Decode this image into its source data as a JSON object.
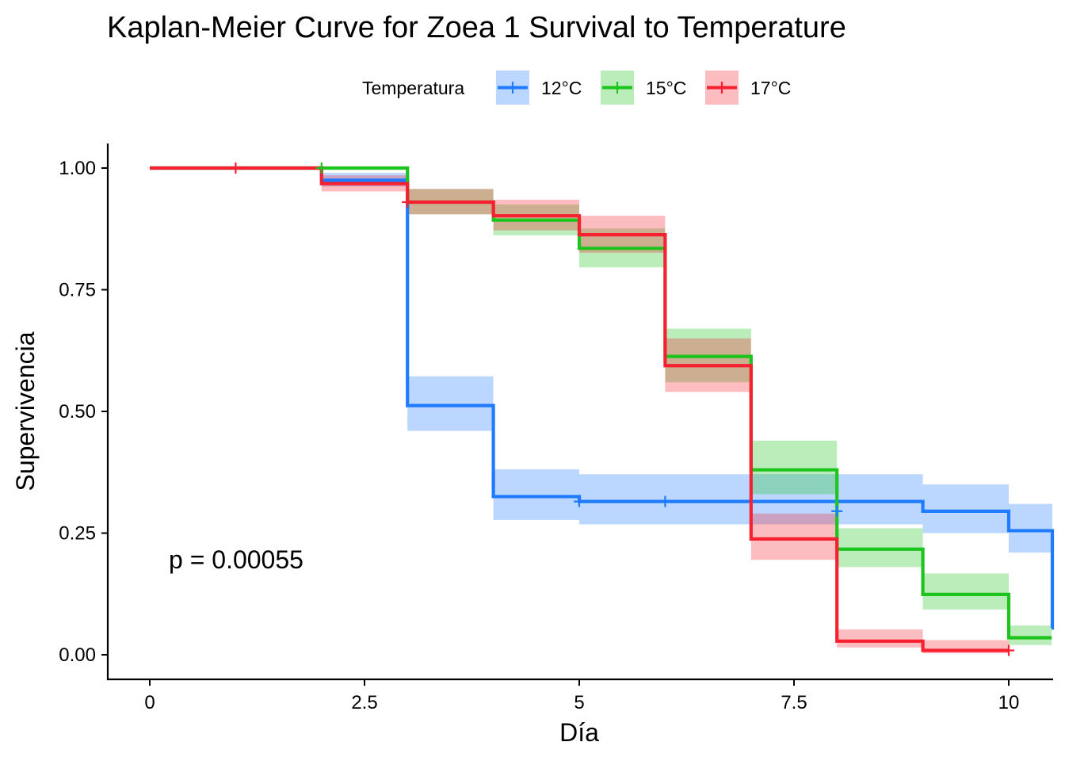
{
  "chart_data": {
    "type": "line",
    "subtype": "kaplan-meier-step",
    "title": "Kaplan-Meier Curve for Zoea 1 Survival to Temperature",
    "xlabel": "Día",
    "ylabel": "Supervivencia",
    "xlim": [
      -0.5,
      10.5
    ],
    "ylim": [
      -0.05,
      1.05
    ],
    "x_ticks": [
      0,
      2.5,
      5,
      7.5,
      10
    ],
    "x_tick_labels": [
      "0",
      "2.5",
      "5",
      "7.5",
      "10"
    ],
    "y_ticks": [
      0,
      0.25,
      0.5,
      0.75,
      1.0
    ],
    "y_tick_labels": [
      "0.00",
      "0.25",
      "0.50",
      "0.75",
      "1.00"
    ],
    "grid": false,
    "legend": {
      "title": "Temperatura",
      "position": "top"
    },
    "annotation": "p = 0.00055",
    "series": [
      {
        "name": "12°C",
        "color": "#1f7bff",
        "steps": [
          {
            "x": 0,
            "y": 1.0,
            "lower": 1.0,
            "upper": 1.0
          },
          {
            "x": 2,
            "y": 0.975,
            "lower": 0.962,
            "upper": 0.99
          },
          {
            "x": 3,
            "y": 0.512,
            "lower": 0.46,
            "upper": 0.572
          },
          {
            "x": 4,
            "y": 0.325,
            "lower": 0.277,
            "upper": 0.381
          },
          {
            "x": 5,
            "y": 0.315,
            "lower": 0.268,
            "upper": 0.371
          },
          {
            "x": 9,
            "y": 0.295,
            "lower": 0.25,
            "upper": 0.35
          },
          {
            "x": 10,
            "y": 0.255,
            "lower": 0.21,
            "upper": 0.31
          },
          {
            "x": 11,
            "y": 0.055,
            "lower": 0.035,
            "upper": 0.087
          }
        ],
        "censored": [
          {
            "x": 5,
            "y": 0.315
          },
          {
            "x": 6,
            "y": 0.315
          },
          {
            "x": 8,
            "y": 0.295
          }
        ]
      },
      {
        "name": "15°C",
        "color": "#1ec41e",
        "steps": [
          {
            "x": 0,
            "y": 1.0,
            "lower": 1.0,
            "upper": 1.0
          },
          {
            "x": 3,
            "y": 0.93,
            "lower": 0.905,
            "upper": 0.957
          },
          {
            "x": 4,
            "y": 0.893,
            "lower": 0.862,
            "upper": 0.925
          },
          {
            "x": 5,
            "y": 0.835,
            "lower": 0.796,
            "upper": 0.876
          },
          {
            "x": 6,
            "y": 0.613,
            "lower": 0.56,
            "upper": 0.67
          },
          {
            "x": 7,
            "y": 0.38,
            "lower": 0.33,
            "upper": 0.44
          },
          {
            "x": 8,
            "y": 0.217,
            "lower": 0.18,
            "upper": 0.26
          },
          {
            "x": 9,
            "y": 0.124,
            "lower": 0.093,
            "upper": 0.167
          },
          {
            "x": 10,
            "y": 0.035,
            "lower": 0.02,
            "upper": 0.06
          }
        ],
        "censored": [
          {
            "x": 2,
            "y": 1.0
          }
        ]
      },
      {
        "name": "17°C",
        "color": "#f52030",
        "steps": [
          {
            "x": 0,
            "y": 1.0,
            "lower": 1.0,
            "upper": 1.0
          },
          {
            "x": 2,
            "y": 0.968,
            "lower": 0.952,
            "upper": 0.985
          },
          {
            "x": 3,
            "y": 0.93,
            "lower": 0.905,
            "upper": 0.957
          },
          {
            "x": 4,
            "y": 0.902,
            "lower": 0.872,
            "upper": 0.935
          },
          {
            "x": 5,
            "y": 0.863,
            "lower": 0.826,
            "upper": 0.902
          },
          {
            "x": 6,
            "y": 0.594,
            "lower": 0.54,
            "upper": 0.65
          },
          {
            "x": 7,
            "y": 0.238,
            "lower": 0.195,
            "upper": 0.29
          },
          {
            "x": 8,
            "y": 0.028,
            "lower": 0.015,
            "upper": 0.052
          },
          {
            "x": 9,
            "y": 0.009,
            "lower": 0.003,
            "upper": 0.03
          }
        ],
        "end_x": 10,
        "censored": [
          {
            "x": 1,
            "y": 1.0
          },
          {
            "x": 3,
            "y": 0.93
          },
          {
            "x": 10,
            "y": 0.009
          }
        ]
      }
    ]
  }
}
